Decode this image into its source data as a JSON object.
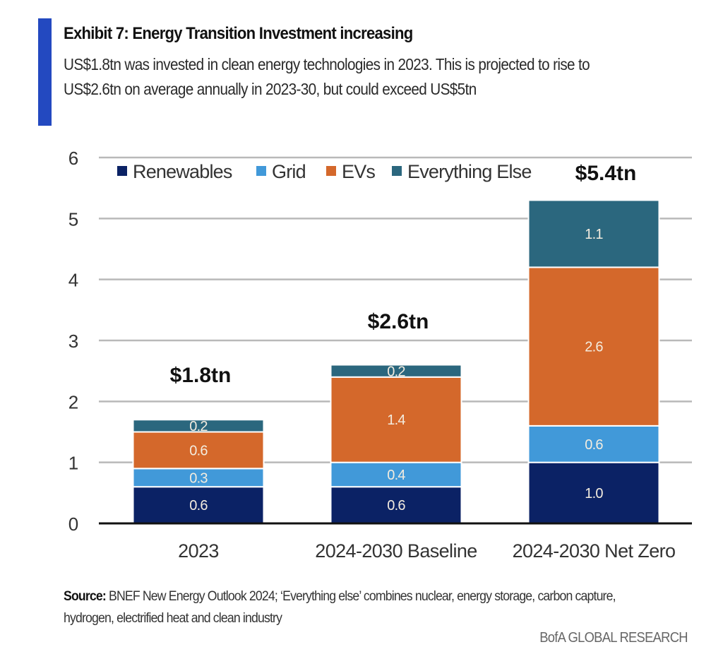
{
  "header": {
    "title": "Exhibit 7: Energy Transition Investment increasing",
    "subtitle": "US$1.8tn was invested in clean energy technologies in 2023. This is projected to rise to US$2.6tn on average annually in 2023-30, but could exceed US$5tn",
    "accent_color": "#2349C0"
  },
  "chart_data": {
    "type": "bar",
    "stacked": true,
    "title": "Exhibit 7: Energy Transition Investment increasing",
    "xlabel": "",
    "ylabel": "",
    "ylim": [
      0,
      6
    ],
    "yticks": [
      0,
      1,
      2,
      3,
      4,
      5,
      6
    ],
    "grid": true,
    "legend_position": "top",
    "categories": [
      "2023",
      "2024-2030 Baseline",
      "2024-2030 Net Zero"
    ],
    "series": [
      {
        "name": "Renewables",
        "color": "#0B2265",
        "values": [
          0.6,
          0.6,
          1.0
        ],
        "labels": [
          "0.6",
          "0.6",
          "1.0"
        ]
      },
      {
        "name": "Grid",
        "color": "#4199D9",
        "values": [
          0.3,
          0.4,
          0.6
        ],
        "labels": [
          "0.3",
          "0.4",
          "0.6"
        ]
      },
      {
        "name": "EVs",
        "color": "#D4682B",
        "values": [
          0.6,
          1.4,
          2.6
        ],
        "labels": [
          "0.6",
          "1.4",
          "2.6"
        ]
      },
      {
        "name": "Everything Else",
        "color": "#2B677E",
        "values": [
          0.2,
          0.2,
          1.1
        ],
        "labels": [
          "0.2",
          "0.2",
          "1.1"
        ]
      }
    ],
    "totals": [
      "$1.8tn",
      "$2.6tn",
      "$5.4tn"
    ]
  },
  "footer": {
    "source_label": "Source:",
    "source_text": " BNEF New Energy Outlook 2024; ‘Everything else’ combines nuclear, energy storage, carbon capture, hydrogen, electrified heat and clean industry",
    "brand": "BofA GLOBAL RESEARCH"
  }
}
